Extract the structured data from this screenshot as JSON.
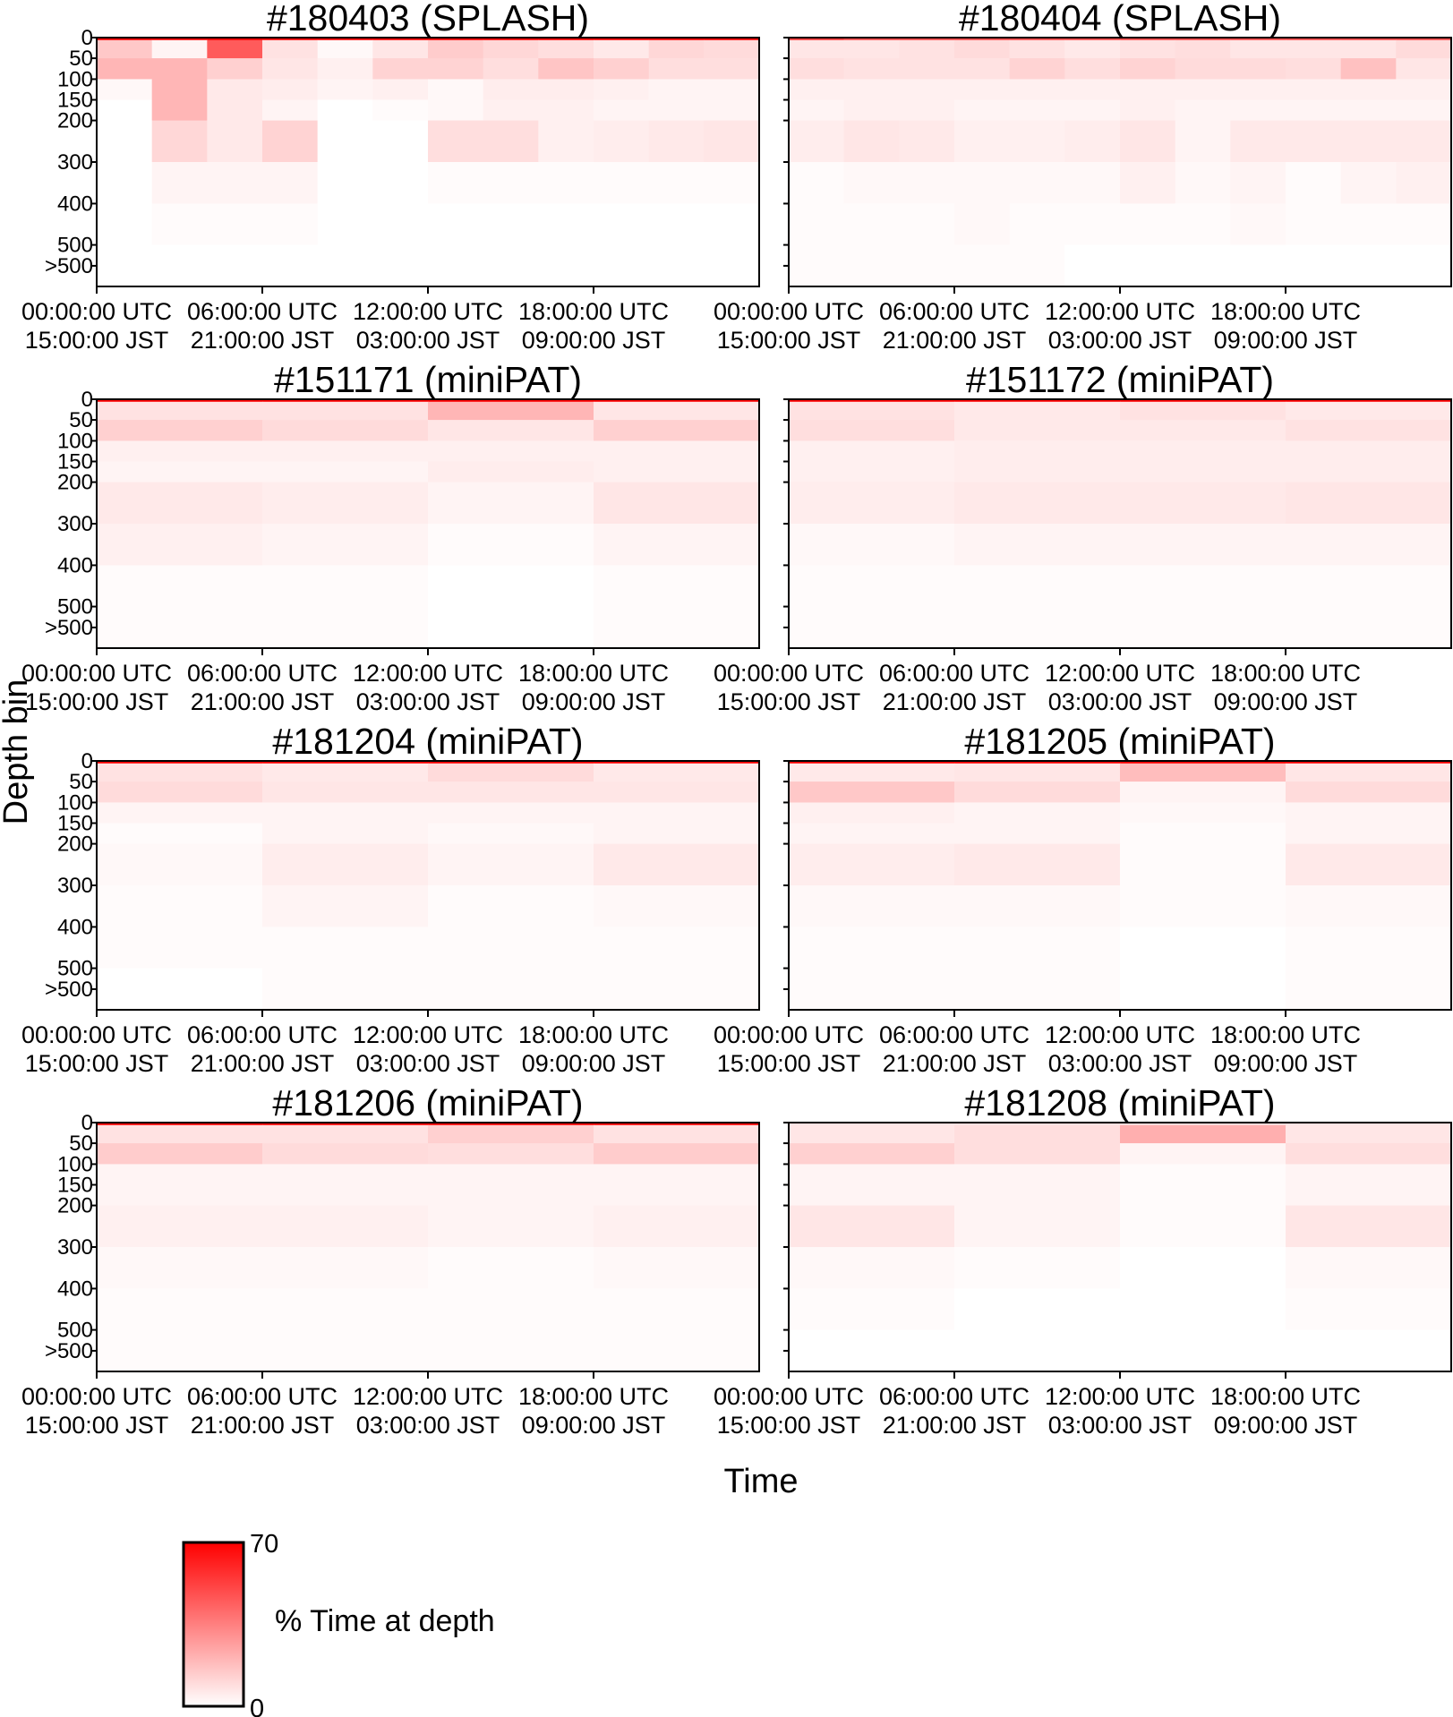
{
  "figure": {
    "xlabel": "Time",
    "ylabel": "Depth bin",
    "depth_bins": [
      "0",
      "50",
      "100",
      "150",
      "200",
      "300",
      "400",
      "500",
      ">500"
    ],
    "time_ticks": [
      {
        "utc": "00:00:00 UTC",
        "jst": "15:00:00 JST"
      },
      {
        "utc": "06:00:00 UTC",
        "jst": "21:00:00 JST"
      },
      {
        "utc": "12:00:00 UTC",
        "jst": "03:00:00 JST"
      },
      {
        "utc": "18:00:00 UTC",
        "jst": "09:00:00 JST"
      }
    ],
    "legend": {
      "title": "% Time at depth",
      "max_label": "70",
      "min_label": "0",
      "max_color": "#ff0000",
      "min_color": "#ffffff"
    }
  },
  "chart_data": [
    {
      "type": "heatmap",
      "title": "#180403 (SPLASH)",
      "xlabel": "Time",
      "ylabel": "Depth bin",
      "x_bins": [
        "00:00-02:00",
        "02:00-04:00",
        "04:00-06:00",
        "06:00-08:00",
        "08:00-10:00",
        "10:00-12:00",
        "12:00-14:00",
        "14:00-16:00",
        "16:00-18:00",
        "18:00-20:00",
        "20:00-22:00",
        "22:00-24:00"
      ],
      "y_bins": [
        "0",
        "50",
        "100",
        "150",
        "200",
        "300",
        "400",
        "500",
        ">500"
      ],
      "value_range": [
        0,
        70
      ],
      "values": [
        [
          70,
          70,
          70,
          70,
          70,
          70,
          70,
          70,
          70,
          70,
          70,
          70
        ],
        [
          15,
          3,
          45,
          8,
          2,
          7,
          14,
          11,
          9,
          6,
          11,
          10
        ],
        [
          20,
          20,
          13,
          7,
          4,
          12,
          12,
          9,
          16,
          13,
          9,
          9
        ],
        [
          2,
          20,
          6,
          5,
          3,
          4,
          2,
          5,
          5,
          4,
          3,
          3
        ],
        [
          0,
          20,
          6,
          3,
          0,
          1,
          2,
          4,
          4,
          3,
          3,
          3
        ],
        [
          0,
          11,
          6,
          12,
          0,
          0,
          9,
          9,
          4,
          5,
          6,
          7
        ],
        [
          0,
          3,
          3,
          3,
          0,
          0,
          1,
          1,
          1,
          1,
          1,
          1
        ],
        [
          0,
          1,
          1,
          1,
          0,
          0,
          0,
          0,
          0,
          0,
          0,
          0
        ],
        [
          0,
          0,
          0,
          0,
          0,
          0,
          0,
          0,
          0,
          0,
          0,
          0
        ]
      ]
    },
    {
      "type": "heatmap",
      "title": "#180404 (SPLASH)",
      "xlabel": "Time",
      "ylabel": "Depth bin",
      "x_bins": [
        "00:00-02:00",
        "02:00-04:00",
        "04:00-06:00",
        "06:00-08:00",
        "08:00-10:00",
        "10:00-12:00",
        "12:00-14:00",
        "14:00-16:00",
        "16:00-18:00",
        "18:00-20:00",
        "20:00-22:00",
        "22:00-24:00"
      ],
      "y_bins": [
        "0",
        "50",
        "100",
        "150",
        "200",
        "300",
        "400",
        "500",
        ">500"
      ],
      "value_range": [
        0,
        70
      ],
      "values": [
        [
          55,
          50,
          50,
          50,
          50,
          50,
          50,
          50,
          50,
          50,
          50,
          50
        ],
        [
          7,
          7,
          8,
          10,
          8,
          6,
          8,
          9,
          7,
          7,
          7,
          10
        ],
        [
          9,
          8,
          8,
          8,
          12,
          9,
          12,
          10,
          10,
          9,
          17,
          7
        ],
        [
          4,
          4,
          4,
          4,
          4,
          4,
          4,
          4,
          4,
          4,
          4,
          4
        ],
        [
          3,
          4,
          4,
          3,
          3,
          3,
          4,
          3,
          3,
          3,
          3,
          3
        ],
        [
          5,
          7,
          6,
          4,
          4,
          5,
          7,
          3,
          6,
          6,
          6,
          6
        ],
        [
          1,
          2,
          2,
          2,
          2,
          2,
          4,
          2,
          3,
          1,
          3,
          4
        ],
        [
          1,
          1,
          1,
          2,
          1,
          1,
          1,
          1,
          2,
          1,
          1,
          1
        ],
        [
          1,
          1,
          1,
          1,
          1,
          0,
          0,
          0,
          0,
          0,
          0,
          0
        ]
      ]
    },
    {
      "type": "heatmap",
      "title": "#151171 (miniPAT)",
      "xlabel": "Time",
      "ylabel": "Depth bin",
      "x_bins": [
        "00:00-06:00",
        "06:00-12:00",
        "12:00-18:00",
        "18:00-24:00"
      ],
      "y_bins": [
        "0",
        "50",
        "100",
        "150",
        "200",
        "300",
        "400",
        "500",
        ">500"
      ],
      "value_range": [
        0,
        70
      ],
      "values": [
        [
          70,
          70,
          70,
          70
        ],
        [
          8,
          8,
          20,
          7
        ],
        [
          13,
          10,
          7,
          13
        ],
        [
          4,
          4,
          4,
          4
        ],
        [
          3,
          3,
          5,
          4
        ],
        [
          6,
          5,
          3,
          7
        ],
        [
          4,
          3,
          1,
          3
        ],
        [
          1,
          1,
          0,
          1
        ],
        [
          1,
          1,
          0,
          1
        ]
      ]
    },
    {
      "type": "heatmap",
      "title": "#151172 (miniPAT)",
      "xlabel": "Time",
      "ylabel": "Depth bin",
      "x_bins": [
        "00:00-06:00",
        "06:00-12:00",
        "12:00-18:00",
        "18:00-24:00"
      ],
      "y_bins": [
        "0",
        "50",
        "100",
        "150",
        "200",
        "300",
        "400",
        "500",
        ">500"
      ],
      "value_range": [
        0,
        70
      ],
      "values": [
        [
          70,
          70,
          70,
          70
        ],
        [
          8,
          6,
          8,
          6
        ],
        [
          9,
          6,
          6,
          8
        ],
        [
          4,
          5,
          5,
          5
        ],
        [
          4,
          5,
          5,
          5
        ],
        [
          5,
          6,
          6,
          7
        ],
        [
          2,
          3,
          3,
          3
        ],
        [
          1,
          1,
          1,
          1
        ],
        [
          1,
          1,
          1,
          1
        ]
      ]
    },
    {
      "type": "heatmap",
      "title": "#181204 (miniPAT)",
      "xlabel": "Time",
      "ylabel": "Depth bin",
      "x_bins": [
        "00:00-06:00",
        "06:00-12:00",
        "12:00-18:00",
        "18:00-24:00"
      ],
      "y_bins": [
        "0",
        "50",
        "100",
        "150",
        "200",
        "300",
        "400",
        "500",
        ">500"
      ],
      "value_range": [
        0,
        70
      ],
      "values": [
        [
          70,
          70,
          70,
          70
        ],
        [
          8,
          6,
          10,
          6
        ],
        [
          10,
          7,
          7,
          7
        ],
        [
          3,
          3,
          3,
          3
        ],
        [
          1,
          3,
          2,
          3
        ],
        [
          2,
          5,
          3,
          6
        ],
        [
          1,
          3,
          1,
          2
        ],
        [
          1,
          1,
          1,
          1
        ],
        [
          0,
          1,
          1,
          1
        ]
      ]
    },
    {
      "type": "heatmap",
      "title": "#181205 (miniPAT)",
      "xlabel": "Time",
      "ylabel": "Depth bin",
      "x_bins": [
        "00:00-06:00",
        "06:00-12:00",
        "12:00-18:00",
        "18:00-24:00"
      ],
      "y_bins": [
        "0",
        "50",
        "100",
        "150",
        "200",
        "300",
        "400",
        "500",
        ">500"
      ],
      "value_range": [
        0,
        70
      ],
      "values": [
        [
          70,
          70,
          70,
          70
        ],
        [
          6,
          7,
          18,
          7
        ],
        [
          15,
          10,
          3,
          10
        ],
        [
          4,
          3,
          2,
          3
        ],
        [
          3,
          3,
          1,
          3
        ],
        [
          5,
          6,
          1,
          6
        ],
        [
          2,
          2,
          1,
          2
        ],
        [
          1,
          1,
          0,
          1
        ],
        [
          1,
          1,
          0,
          1
        ]
      ]
    },
    {
      "type": "heatmap",
      "title": "#181206 (miniPAT)",
      "xlabel": "Time",
      "ylabel": "Depth bin",
      "x_bins": [
        "00:00-06:00",
        "06:00-12:00",
        "12:00-18:00",
        "18:00-24:00"
      ],
      "y_bins": [
        "0",
        "50",
        "100",
        "150",
        "200",
        "300",
        "400",
        "500",
        ">500"
      ],
      "value_range": [
        0,
        70
      ],
      "values": [
        [
          70,
          70,
          70,
          70
        ],
        [
          8,
          8,
          13,
          8
        ],
        [
          14,
          10,
          9,
          14
        ],
        [
          3,
          3,
          3,
          3
        ],
        [
          3,
          3,
          3,
          3
        ],
        [
          4,
          4,
          3,
          4
        ],
        [
          2,
          2,
          1,
          2
        ],
        [
          1,
          1,
          1,
          1
        ],
        [
          1,
          1,
          1,
          1
        ]
      ]
    },
    {
      "type": "heatmap",
      "title": "#181208 (miniPAT)",
      "xlabel": "Time",
      "ylabel": "Depth bin",
      "x_bins": [
        "00:00-06:00",
        "06:00-12:00",
        "12:00-18:00",
        "18:00-24:00"
      ],
      "y_bins": [
        "0",
        "50",
        "100",
        "150",
        "200",
        "300",
        "400",
        "500",
        ">500"
      ],
      "value_range": [
        0,
        70
      ],
      "values": [
        [
          8,
          8,
          8,
          8
        ],
        [
          7,
          9,
          22,
          7
        ],
        [
          13,
          9,
          3,
          9
        ],
        [
          3,
          3,
          1,
          3
        ],
        [
          3,
          3,
          1,
          3
        ],
        [
          7,
          3,
          1,
          7
        ],
        [
          2,
          1,
          0,
          2
        ],
        [
          1,
          0,
          0,
          1
        ],
        [
          0,
          0,
          0,
          0
        ]
      ]
    }
  ]
}
